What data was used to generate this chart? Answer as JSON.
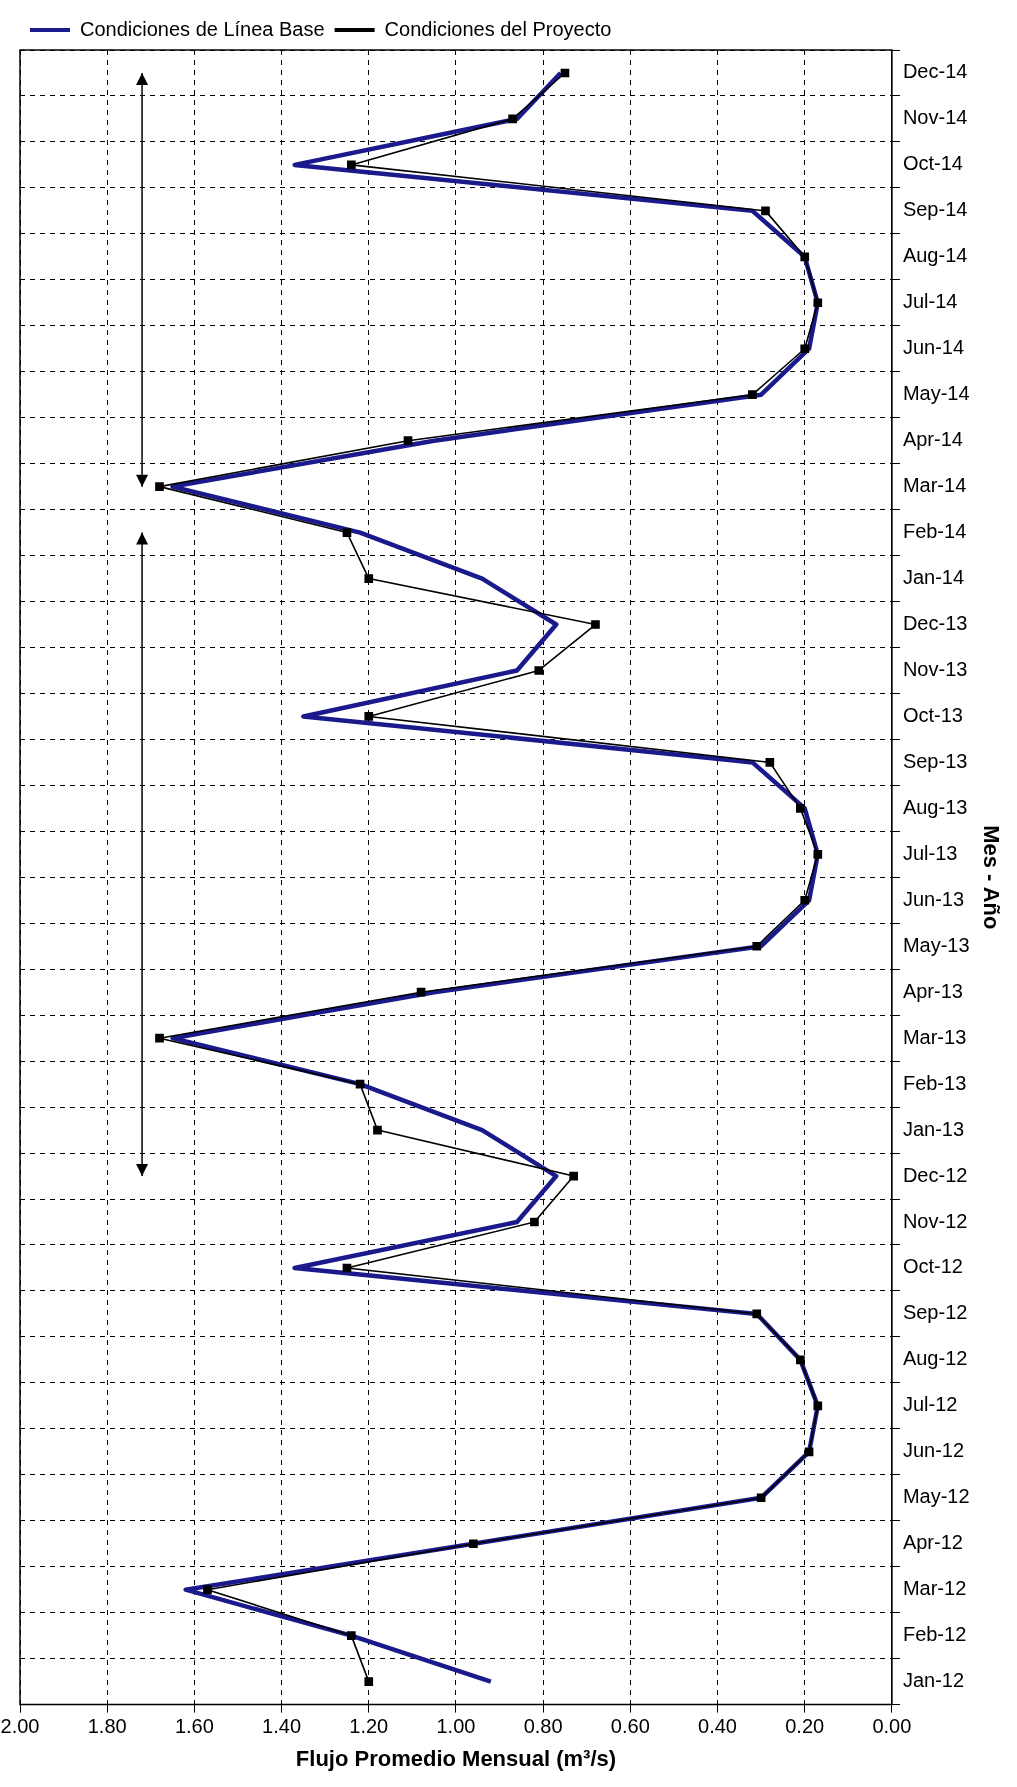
{
  "chart_data": {
    "type": "line",
    "orientation": "horizontal",
    "ylabel": "Mes - Año",
    "xlabel": "Flujo Promedio Mensual (m³/s)",
    "categories": [
      "Dec-14",
      "Nov-14",
      "Oct-14",
      "Sep-14",
      "Aug-14",
      "Jul-14",
      "Jun-14",
      "May-14",
      "Apr-14",
      "Mar-14",
      "Feb-14",
      "Jan-14",
      "Dec-13",
      "Nov-13",
      "Oct-13",
      "Sep-13",
      "Aug-13",
      "Jul-13",
      "Jun-13",
      "May-13",
      "Apr-13",
      "Mar-13",
      "Feb-13",
      "Jan-13",
      "Dec-12",
      "Nov-12",
      "Oct-12",
      "Sep-12",
      "Aug-12",
      "Jul-12",
      "Jun-12",
      "May-12",
      "Apr-12",
      "Mar-12",
      "Feb-12",
      "Jan-12"
    ],
    "series": [
      {
        "name": "Condiciones de Línea Base",
        "color": "#1a1a8c",
        "marker": "none",
        "values": [
          0.76,
          0.86,
          1.37,
          0.32,
          0.2,
          0.17,
          0.19,
          0.3,
          1.05,
          1.65,
          1.22,
          0.94,
          0.77,
          0.86,
          1.35,
          0.32,
          0.2,
          0.17,
          0.19,
          0.3,
          1.05,
          1.65,
          1.22,
          0.94,
          0.77,
          0.86,
          1.37,
          0.31,
          0.21,
          0.17,
          0.19,
          0.3,
          0.96,
          1.62,
          1.24,
          0.92
        ]
      },
      {
        "name": "Condiciones del Proyecto",
        "color": "#000000",
        "marker": "square",
        "values": [
          0.75,
          0.87,
          1.24,
          0.29,
          0.2,
          0.17,
          0.2,
          0.32,
          1.11,
          1.68,
          1.25,
          1.2,
          0.68,
          0.81,
          1.2,
          0.28,
          0.21,
          0.17,
          0.2,
          0.31,
          1.08,
          1.68,
          1.22,
          1.18,
          0.73,
          0.82,
          1.25,
          0.31,
          0.21,
          0.17,
          0.19,
          0.3,
          0.96,
          1.57,
          1.24,
          1.2
        ]
      }
    ],
    "xlim": [
      2,
      0
    ],
    "xticks": [
      {
        "value": 0,
        "label": "0.00"
      },
      {
        "value": 0.2,
        "label": "0.20"
      },
      {
        "value": 0.4,
        "label": "0.40"
      },
      {
        "value": 0.6,
        "label": "0.60"
      },
      {
        "value": 0.8,
        "label": "0.80"
      },
      {
        "value": 1,
        "label": "1.00"
      },
      {
        "value": 1.2,
        "label": "1.20"
      },
      {
        "value": 1.4,
        "label": "1.40"
      },
      {
        "value": 1.6,
        "label": "1.60"
      },
      {
        "value": 1.8,
        "label": "1.80"
      },
      {
        "value": 2,
        "label": "2.00"
      }
    ],
    "grid": true,
    "legend": "top left",
    "line_style": "solid"
  }
}
